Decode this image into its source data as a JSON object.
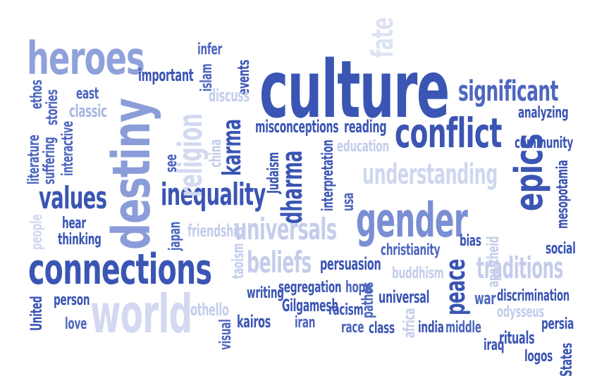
{
  "colors": {
    "dark": "#3a55b4",
    "mid": "#5b74c9",
    "light": "#9aaadd",
    "pale": "#cfd7ef"
  },
  "words": {
    "culture": "culture",
    "heroes": "heroes",
    "destiny": "destiny",
    "connections": "connections",
    "world": "world",
    "gender": "gender",
    "conflict": "conflict",
    "epics": "epics",
    "significant": "significant",
    "values": "values",
    "inequality": "inequality",
    "universals": "universals",
    "understanding": "understanding",
    "traditions": "traditions",
    "beliefs": "beliefs",
    "religion": "religion",
    "karma": "karma",
    "dharma": "dharma",
    "peace": "peace",
    "fate": "fate",
    "important": "important",
    "infer": "infer",
    "islam": "islam",
    "events": "events",
    "discuss": "discuss",
    "east": "east",
    "classic": "classic",
    "stories": "stories",
    "ethos": "ethos",
    "literature": "literature",
    "suffering": "suffering",
    "interactive": "interactive",
    "see": "see",
    "china": "china",
    "misconceptions": "misconceptions",
    "reading": "reading",
    "education": "education",
    "judaism": "Judaism",
    "interpretation": "interpretation",
    "usa": "usa",
    "analyzing": "analyzing",
    "community": "community",
    "mesopotamia": "mesopotamia",
    "apartheid": "apartheid",
    "bias": "bias",
    "social": "social",
    "hear": "hear",
    "thinking": "thinking",
    "people": "people",
    "japan": "japan",
    "friendship": "friendship",
    "taoism": "taoism",
    "christianity": "christianity",
    "buddhism": "buddhism",
    "persuasion": "persuasion",
    "segregation": "segregation",
    "hope": "hope",
    "writing": "writing",
    "united": "United",
    "person": "person",
    "love": "love",
    "othello": "othello",
    "visual": "visual",
    "kairos": "kairos",
    "gilgamesh": "Gilgamesh",
    "iran": "iran",
    "racism": "racism",
    "race": "race",
    "pathos": "pathos",
    "universal": "universal",
    "class": "class",
    "africa": "africa",
    "india": "india",
    "middle": "middle",
    "war": "war",
    "discrimination": "discrimination",
    "odysseus": "odysseus",
    "rituals": "rituals",
    "iraq": "iraq",
    "persia": "persia",
    "logos": "logos",
    "states": "States"
  }
}
